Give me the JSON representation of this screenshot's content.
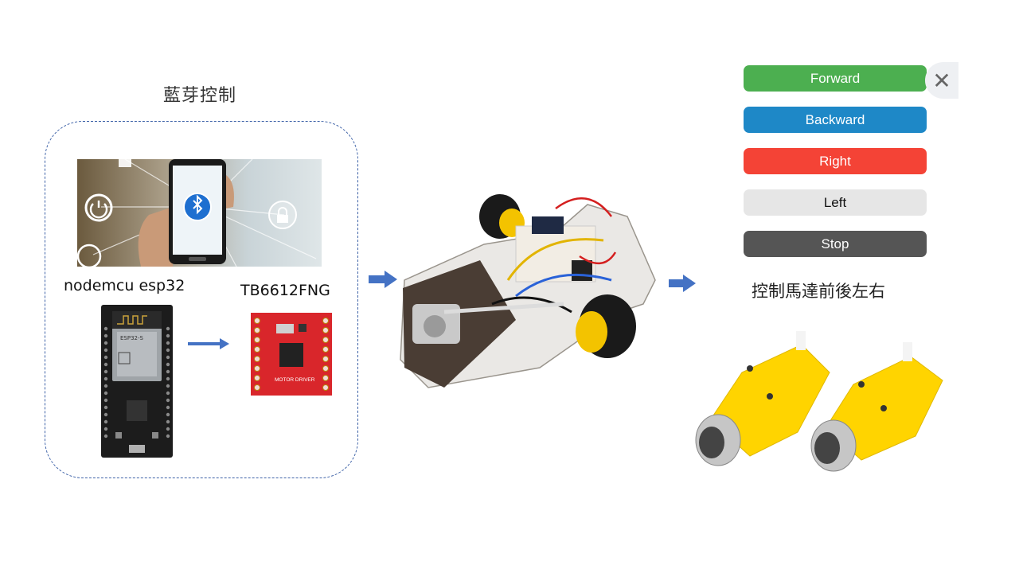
{
  "diagram": {
    "bluetooth_title": "藍芽控制",
    "esp_label": "nodemcu esp32",
    "driver_label": "TB6612FNG",
    "motors_label": "控制馬達前後左右",
    "esp_chip_text": "ESP32-S",
    "driver_board_text": "MOTOR DRIVER"
  },
  "controls": {
    "buttons": [
      {
        "label": "Forward",
        "color": "#4caf50",
        "text_color": "#ffffff"
      },
      {
        "label": "Backward",
        "color": "#1e88c7",
        "text_color": "#ffffff"
      },
      {
        "label": "Right",
        "color": "#f44336",
        "text_color": "#ffffff"
      },
      {
        "label": "Left",
        "color": "#e6e6e6",
        "text_color": "#111111"
      },
      {
        "label": "Stop",
        "color": "#555555",
        "text_color": "#ffffff"
      }
    ],
    "close_icon": "close-icon"
  },
  "colors": {
    "arrow": "#4472c4",
    "dashed_border": "#3f63a8",
    "driver_board": "#d9262b",
    "motor_yellow": "#ffd400"
  }
}
